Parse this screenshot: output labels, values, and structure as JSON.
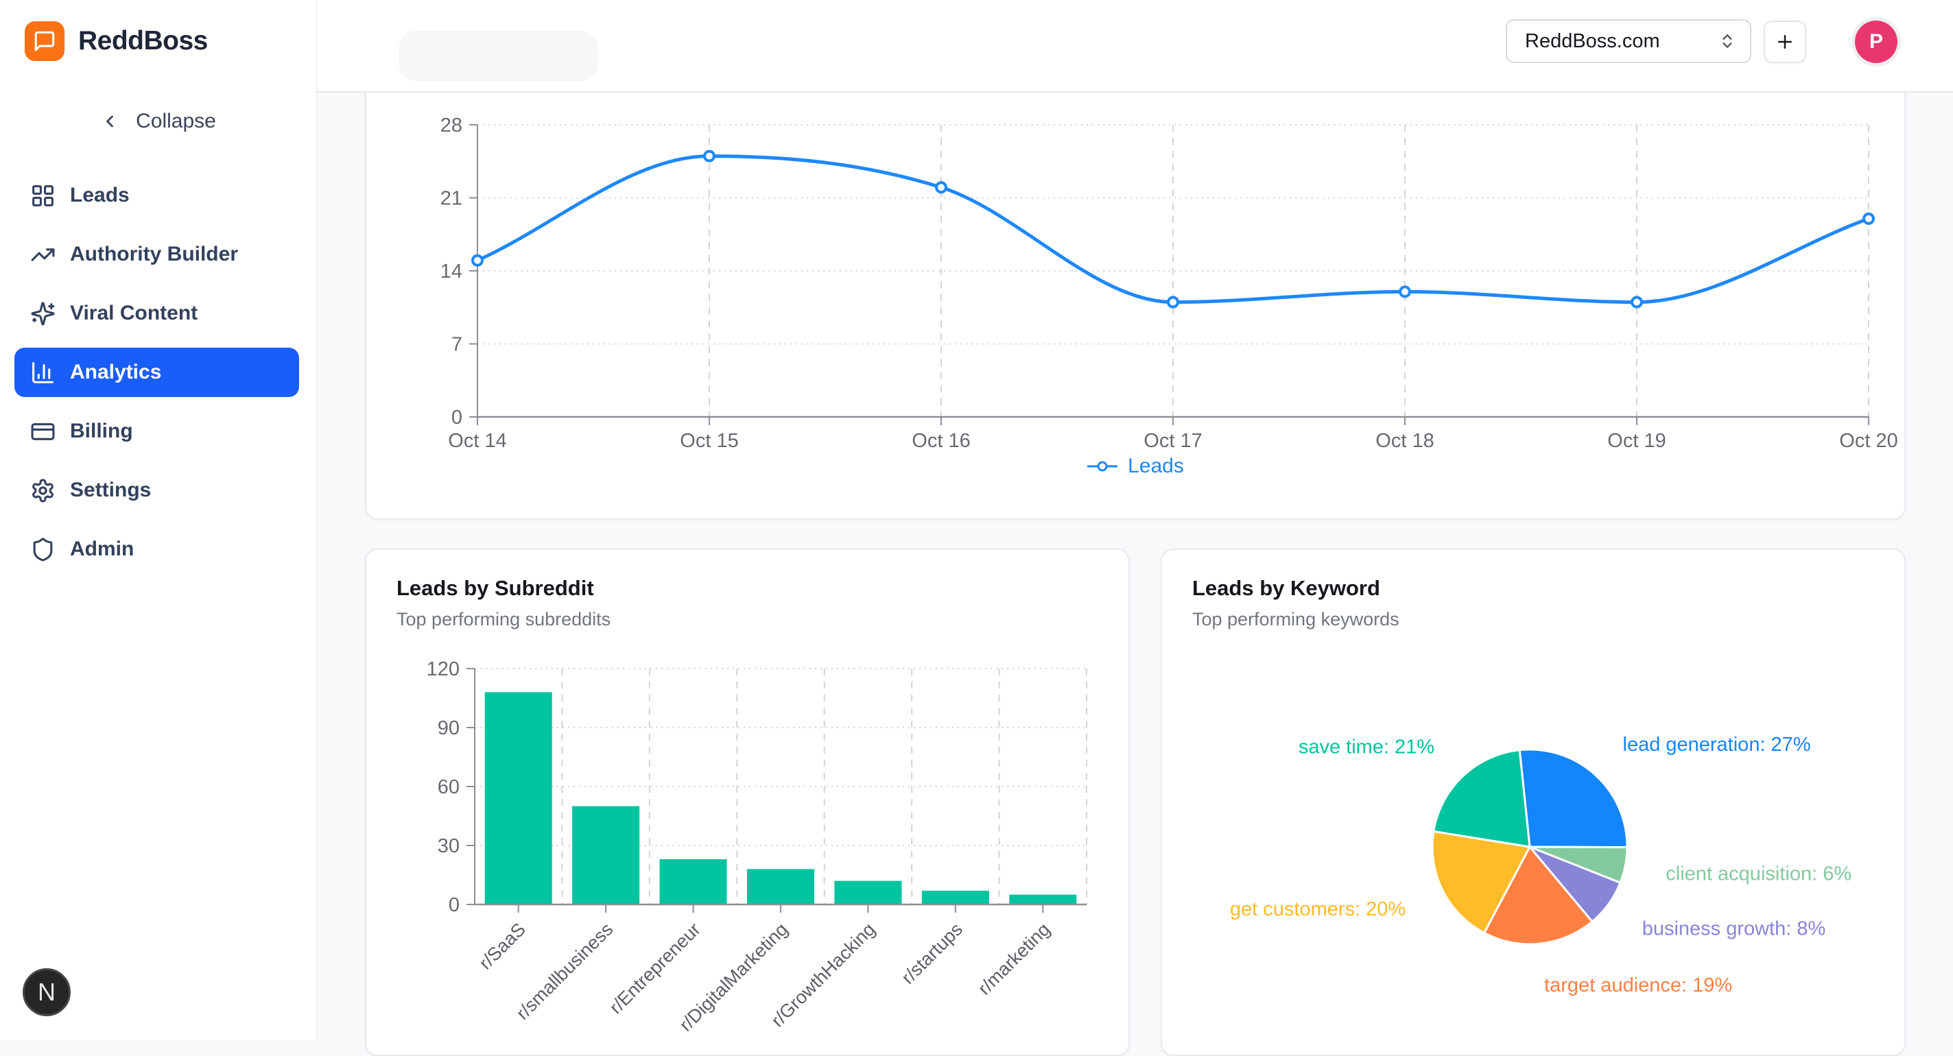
{
  "sidebar": {
    "brand": "ReddBoss",
    "collapse_label": "Collapse",
    "items": [
      {
        "label": "Leads",
        "icon": "grid-icon",
        "active": false
      },
      {
        "label": "Authority Builder",
        "icon": "trending-up-icon",
        "active": false
      },
      {
        "label": "Viral Content",
        "icon": "sparkles-icon",
        "active": false
      },
      {
        "label": "Analytics",
        "icon": "bar-chart-icon",
        "active": true
      },
      {
        "label": "Billing",
        "icon": "credit-card-icon",
        "active": false
      },
      {
        "label": "Settings",
        "icon": "gear-icon",
        "active": false
      },
      {
        "label": "Admin",
        "icon": "shield-icon",
        "active": false
      }
    ]
  },
  "header": {
    "workspace_selector": {
      "value": "ReddBoss.com",
      "icon": "chevrons-up-down-icon"
    },
    "add_button": {
      "icon": "plus-icon"
    },
    "avatar": {
      "initial": "P"
    }
  },
  "dev_badge": {
    "letter": "N"
  },
  "colors": {
    "brand_orange": "#f97316",
    "sidebar_active_blue": "#1a5ef9",
    "avatar_pink": "#e8376f",
    "axis": "#8b8f96",
    "grid": "#d2d4d8"
  },
  "chart_data": [
    {
      "type": "line",
      "x": [
        "Oct 14",
        "Oct 15",
        "Oct 16",
        "Oct 17",
        "Oct 18",
        "Oct 19",
        "Oct 20"
      ],
      "series": [
        {
          "name": "Leads",
          "color": "#1e88fb",
          "values": [
            15,
            25,
            22,
            11,
            12,
            11,
            19
          ]
        }
      ],
      "ylim": [
        0,
        28
      ],
      "yticks": [
        0,
        7,
        14,
        21,
        28
      ],
      "grid": true,
      "legend": {
        "position": "bottom",
        "label": "Leads"
      }
    },
    {
      "type": "bar",
      "title": "Leads by Subreddit",
      "subtitle": "Top performing subreddits",
      "categories": [
        "r/SaaS",
        "r/smallbusiness",
        "r/Entrepreneur",
        "r/DigitalMarketing",
        "r/GrowthHacking",
        "r/startups",
        "r/marketing"
      ],
      "values": [
        108,
        50,
        23,
        18,
        12,
        7,
        5
      ],
      "color": "#00c49f",
      "ylim": [
        0,
        120
      ],
      "yticks": [
        0,
        30,
        60,
        90,
        120
      ],
      "grid": true
    },
    {
      "type": "pie",
      "title": "Leads by Keyword",
      "subtitle": "Top performing keywords",
      "slices": [
        {
          "label": "lead generation",
          "pct": 27,
          "color": "#1386fb"
        },
        {
          "label": "client acquisition",
          "pct": 6,
          "color": "#82ca9d"
        },
        {
          "label": "business growth",
          "pct": 8,
          "color": "#8884d8"
        },
        {
          "label": "target audience",
          "pct": 19,
          "color": "#ff8042"
        },
        {
          "label": "get customers",
          "pct": 20,
          "color": "#ffbb28"
        },
        {
          "label": "save time",
          "pct": 21,
          "color": "#00c49f"
        }
      ],
      "label_format": "{label}: {pct}%",
      "start_angle_deg": -96
    }
  ]
}
